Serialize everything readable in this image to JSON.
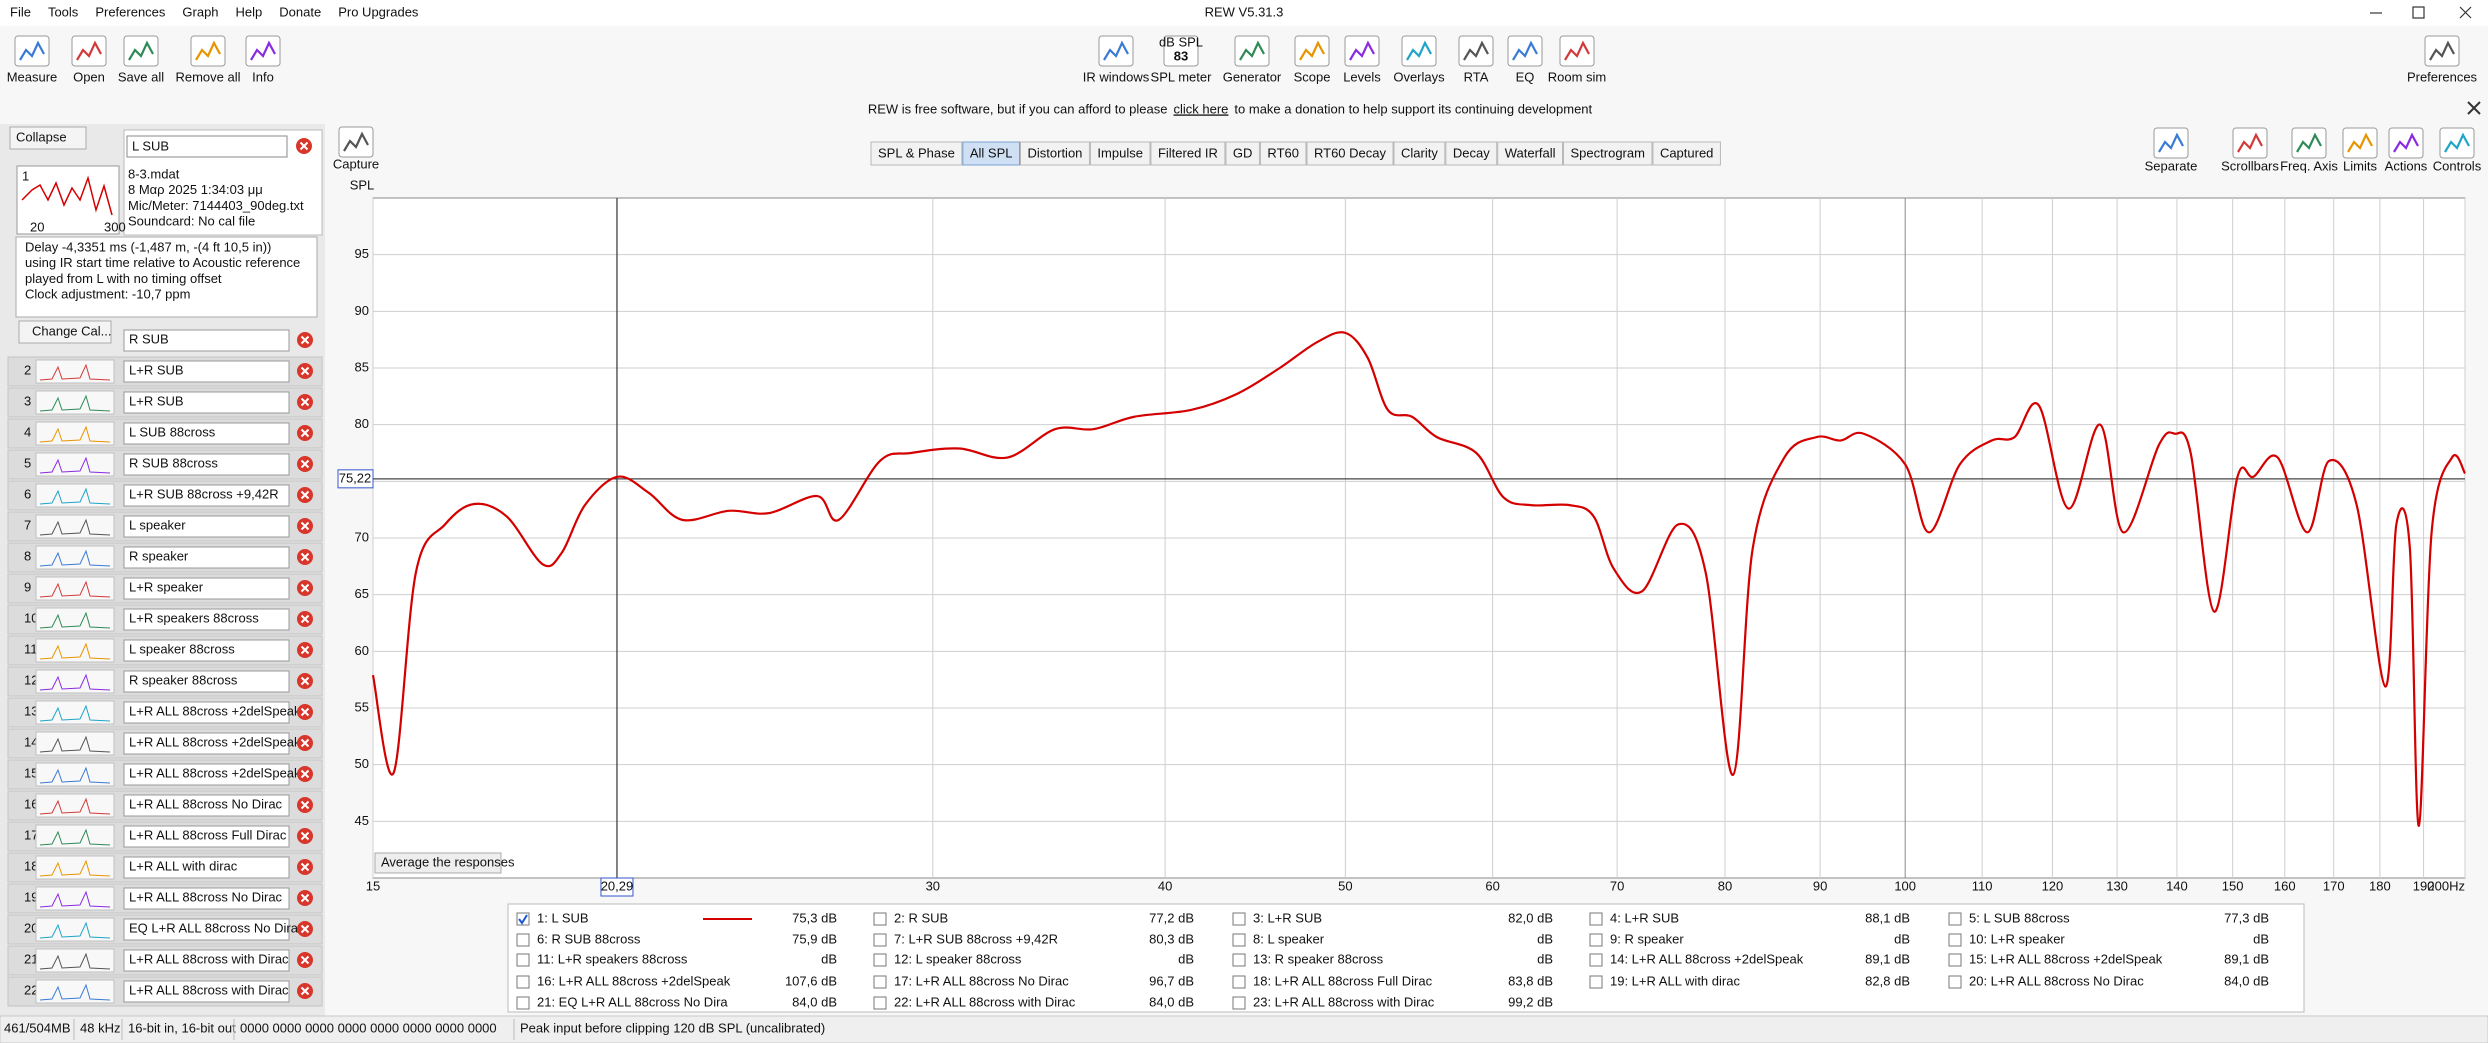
{
  "window_title": "REW V5.31.3",
  "menu": [
    "File",
    "Tools",
    "Preferences",
    "Graph",
    "Help",
    "Donate",
    "Pro Upgrades"
  ],
  "toolbar_left": [
    "Measure",
    "Open",
    "Save all",
    "Remove all",
    "Info"
  ],
  "toolbar_center": [
    "IR windows",
    "SPL meter",
    "Generator",
    "Scope",
    "Levels",
    "Overlays",
    "RTA",
    "EQ",
    "Room sim"
  ],
  "spl_meter_icon": {
    "unit": "dB SPL",
    "reading": "83"
  },
  "toolbar_right": [
    "Preferences"
  ],
  "banner": {
    "before": "REW is free software, but if you can afford to please",
    "link": "click here",
    "after": "to make a donation to help support its continuing development"
  },
  "capture": "Capture",
  "tabs": [
    "SPL & Phase",
    "All SPL",
    "Distortion",
    "Impulse",
    "Filtered IR",
    "GD",
    "RT60",
    "RT60 Decay",
    "Clarity",
    "Decay",
    "Waterfall",
    "Spectrogram",
    "Captured"
  ],
  "active_tab": 1,
  "graph_controls": [
    "Separate",
    "Scrollbars",
    "Freq. Axis",
    "Limits",
    "Actions",
    "Controls"
  ],
  "panel": {
    "collapse": "Collapse",
    "selected": {
      "number": "1",
      "thumb_axis": [
        "20",
        "300"
      ],
      "file": "8-3.mdat",
      "date": "8 Μαρ 2025 1:34:03 μμ",
      "mic": "Mic/Meter: 7144403_90deg.txt",
      "soundcard": "Soundcard: No cal file",
      "notes": [
        "Delay -4,3351 ms (-1,487 m, -(4 ft 10,5 in))",
        "using IR start time relative to Acoustic reference",
        "played from  L with no timing offset",
        "Clock adjustment: -10,7 ppm"
      ]
    },
    "change_cal": "Change Cal...",
    "list": [
      {
        "name": "R SUB",
        "color": "#000000"
      },
      {
        "number": "2",
        "name": "L+R SUB",
        "color": "#1a1aff"
      },
      {
        "number": "3",
        "name": "L+R SUB",
        "color": "#1a1aff"
      },
      {
        "number": "4",
        "name": "L SUB 88cross",
        "color": "#000000"
      },
      {
        "number": "5",
        "name": "R SUB 88cross",
        "color": "#000000"
      },
      {
        "number": "6",
        "name": "L+R SUB 88cross +9,42R",
        "color": "#1a1aff"
      },
      {
        "number": "7",
        "name": "L speaker",
        "color": "#1a1aff"
      },
      {
        "number": "8",
        "name": "R speaker",
        "color": "#000000"
      },
      {
        "number": "9",
        "name": "L+R speaker",
        "color": "#1a1aff"
      },
      {
        "number": "10",
        "name": "L+R speakers 88cross",
        "color": "#000000"
      },
      {
        "number": "11",
        "name": "L speaker 88cross",
        "color": "#000000"
      },
      {
        "number": "12",
        "name": "R speaker 88cross",
        "color": "#000000"
      },
      {
        "number": "13",
        "name": "L+R ALL 88cross +2delSpeak",
        "color": "#000000"
      },
      {
        "number": "14",
        "name": "L+R ALL 88cross +2delSpeak",
        "color": "#000000"
      },
      {
        "number": "15",
        "name": "L+R ALL 88cross +2delSpeak",
        "color": "#000000"
      },
      {
        "number": "16",
        "name": "L+R ALL 88cross No Dirac",
        "color": "#000000"
      },
      {
        "number": "17",
        "name": "L+R ALL 88cross Full Dirac",
        "color": "#000000"
      },
      {
        "number": "18",
        "name": "L+R ALL with dirac",
        "color": "#1a1aff"
      },
      {
        "number": "19",
        "name": "L+R ALL 88cross No Dirac",
        "color": "#000000"
      },
      {
        "number": "20",
        "name": "EQ L+R ALL 88cross No Dira",
        "color": "#000000"
      },
      {
        "number": "21",
        "name": "L+R ALL 88cross with Dirac",
        "color": "#000000"
      },
      {
        "number": "22",
        "name": "L+R ALL 88cross with Dirac",
        "color": "#000000"
      }
    ]
  },
  "average_button": "Average the responses",
  "legend_table": [
    {
      "label": "1: L SUB",
      "value": "75,3 dB",
      "color": "#e00000",
      "checked": true
    },
    {
      "label": "2: R SUB",
      "value": "77,2 dB",
      "color": "#2e8b2e",
      "checked": false
    },
    {
      "label": "3: L+R SUB",
      "value": "82,0 dB",
      "color": "#1565c0",
      "checked": false
    },
    {
      "label": "4: L+R SUB",
      "value": "88,1 dB",
      "color": "#e69500",
      "checked": false
    },
    {
      "label": "5: L SUB 88cross",
      "value": "77,3 dB",
      "color": "#1ea5c8",
      "checked": false
    },
    {
      "label": "6: R SUB 88cross",
      "value": "75,9 dB",
      "color": "#6a7fb5",
      "checked": false
    },
    {
      "label": "7: L+R SUB 88cross +9,42R",
      "value": "80,3 dB",
      "color": "#c000c0",
      "checked": false
    },
    {
      "label": "8: L speaker",
      "value": "dB",
      "color": "#e69500",
      "checked": false
    },
    {
      "label": "9: R speaker",
      "value": "dB",
      "color": "#1ea5c8",
      "checked": false
    },
    {
      "label": "10: L+R speaker",
      "value": "dB",
      "color": "#c000c0",
      "checked": false
    },
    {
      "label": "11: L+R speakers 88cross",
      "value": "dB",
      "color": "#e00000",
      "checked": false
    },
    {
      "label": "12: L speaker 88cross",
      "value": "dB",
      "color": "#2e8b2e",
      "checked": false
    },
    {
      "label": "13: R speaker 88cross",
      "value": "dB",
      "color": "#1565c0",
      "checked": false
    },
    {
      "label": "14: L+R ALL 88cross +2delSpeak",
      "value": "89,1 dB",
      "color": "#e6a000",
      "checked": false
    },
    {
      "label": "15: L+R ALL 88cross +2delSpeak",
      "value": "89,1 dB",
      "color": "#c000c0",
      "checked": false
    },
    {
      "label": "16: L+R ALL 88cross +2delSpeak",
      "value": "107,6 dB",
      "color": "#1565c0",
      "checked": false
    },
    {
      "label": "17: L+R ALL 88cross No Dirac",
      "value": "96,7 dB",
      "color": "#d0006a",
      "checked": false
    },
    {
      "label": "18: L+R ALL 88cross Full Dirac",
      "value": "83,8 dB",
      "color": "#c00000",
      "checked": false
    },
    {
      "label": "19: L+R ALL with dirac",
      "value": "82,8 dB",
      "color": "#2e8b2e",
      "checked": false
    },
    {
      "label": "20: L+R ALL 88cross No Dirac",
      "value": "84,0 dB",
      "color": "#1565c0",
      "checked": false
    },
    {
      "label": "21: EQ L+R ALL 88cross No Dira",
      "value": "84,0 dB",
      "color": "#e69500",
      "checked": false
    },
    {
      "label": "22: L+R ALL 88cross with Dirac",
      "value": "84,0 dB",
      "color": "#b8a000",
      "checked": false
    },
    {
      "label": "23: L+R ALL 88cross with Dirac",
      "value": "99,2 dB",
      "color": "#20b080",
      "checked": false
    }
  ],
  "status": [
    "461/504MB",
    "48 kHz",
    "16-bit in, 16-bit out",
    "0000 0000  0000 0000  0000 0000  0000 0000",
    "Peak input before clipping 120 dB SPL (uncalibrated)"
  ],
  "chart_data": {
    "type": "line",
    "y_label": "SPL",
    "log_x": true,
    "grid": true,
    "x": [
      15,
      15.39,
      15.82,
      16.4,
      17,
      17.7,
      18.5,
      18.95,
      19.5,
      20.3,
      21.1,
      22,
      23.3,
      24.5,
      26,
      26.7,
      28.1,
      29.2,
      31,
      32.9,
      34.9,
      36.6,
      38.5,
      41.3,
      43.7,
      46,
      48.3,
      50,
      51.4,
      52.7,
      54.3,
      56,
      58.8,
      60.8,
      62.9,
      66,
      68,
      69.7,
      72.2,
      75.5,
      78.1,
      80.8,
      82.8,
      86.1,
      89.6,
      92.3,
      95,
      100,
      103,
      107,
      111.3,
      114.5,
      118,
      122.4,
      127.3,
      131,
      136.9,
      139.6,
      142.4,
      146.6,
      150.9,
      153.9,
      158.6,
      164.5,
      169,
      174.9,
      181.2,
      183.7,
      186.8,
      188.9,
      191.9,
      196.8,
      200
    ],
    "series": [
      {
        "name": "L SUB",
        "color": "#d40000",
        "values": [
          57.9,
          49.3,
          67,
          71.2,
          73,
          71.9,
          67.7,
          68.7,
          72.9,
          75.4,
          74,
          71.6,
          72.4,
          72.2,
          73.7,
          71.6,
          76.8,
          77.5,
          77.9,
          77.1,
          79.6,
          79.6,
          80.7,
          81.3,
          82.7,
          84.9,
          87.3,
          88.1,
          85.9,
          81.3,
          80.7,
          78.9,
          77.5,
          73.6,
          72.9,
          72.9,
          71.9,
          67.3,
          65.3,
          71.2,
          67,
          49.1,
          69.1,
          77.1,
          78.9,
          78.6,
          79.2,
          76.5,
          70.5,
          76.5,
          78.6,
          78.9,
          81.7,
          72.6,
          80,
          70.5,
          78.2,
          79.2,
          77.5,
          63.5,
          75.4,
          75.4,
          77.1,
          70.5,
          76.8,
          72.9,
          56.9,
          71.2,
          69.1,
          44.6,
          70.5,
          77.1,
          75.7
        ]
      }
    ],
    "xlim": [
      15,
      200
    ],
    "ylim": [
      40,
      100
    ],
    "xticks": [
      15,
      30,
      40,
      50,
      60,
      70,
      80,
      90,
      100,
      110,
      120,
      130,
      140,
      150,
      160,
      170,
      180,
      190,
      {
        "value": 200,
        "label": "200Hz"
      }
    ],
    "yticks": [
      45,
      50,
      55,
      60,
      65,
      70,
      75,
      80,
      85,
      90,
      95
    ],
    "cursor_x": {
      "value": 20.29,
      "label": "20,29"
    },
    "cursor_y": {
      "value": 75.22,
      "label": "75,22"
    }
  }
}
